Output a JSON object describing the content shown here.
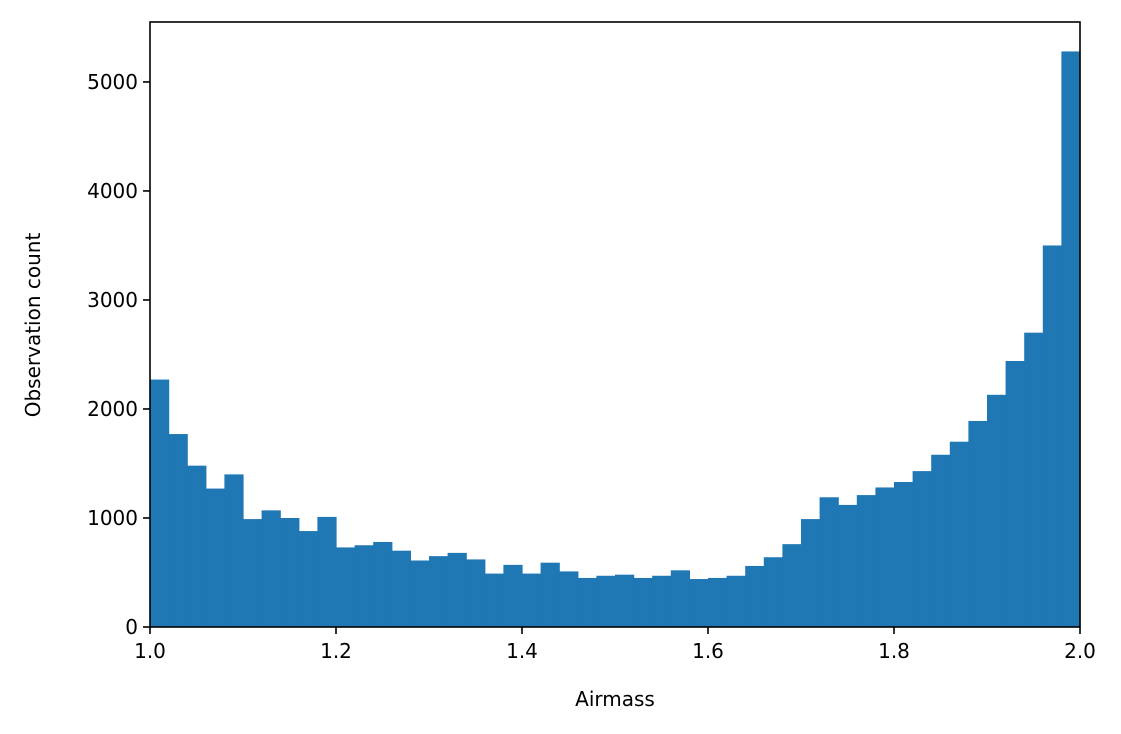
{
  "chart_data": {
    "type": "bar",
    "title": "",
    "xlabel": "Airmass",
    "ylabel": "Observation count",
    "xlim": [
      1.0,
      2.0
    ],
    "ylim": [
      0,
      5550
    ],
    "grid": false,
    "bar_color": "#1f77b4",
    "x_ticks": [
      1.0,
      1.2,
      1.4,
      1.6,
      1.8,
      2.0
    ],
    "x_tick_labels": [
      "1.0",
      "1.2",
      "1.4",
      "1.6",
      "1.8",
      "2.0"
    ],
    "y_ticks": [
      0,
      1000,
      2000,
      3000,
      4000,
      5000
    ],
    "y_tick_labels": [
      "0",
      "1000",
      "2000",
      "3000",
      "4000",
      "5000"
    ],
    "bin_edges": [
      1.0,
      1.02,
      1.04,
      1.06,
      1.08,
      1.1,
      1.12,
      1.14,
      1.16,
      1.18,
      1.2,
      1.22,
      1.24,
      1.26,
      1.28,
      1.3,
      1.32,
      1.34,
      1.36,
      1.38,
      1.4,
      1.42,
      1.44,
      1.46,
      1.48,
      1.5,
      1.52,
      1.54,
      1.56,
      1.58,
      1.6,
      1.62,
      1.64,
      1.66,
      1.68,
      1.7,
      1.72,
      1.74,
      1.76,
      1.78,
      1.8,
      1.82,
      1.84,
      1.86,
      1.88,
      1.9,
      1.92,
      1.94,
      1.96,
      1.98,
      2.0
    ],
    "values": [
      2270,
      1770,
      1480,
      1270,
      1400,
      990,
      1070,
      1000,
      880,
      1010,
      730,
      750,
      780,
      700,
      610,
      650,
      680,
      620,
      490,
      570,
      490,
      590,
      510,
      450,
      470,
      480,
      450,
      470,
      520,
      440,
      450,
      470,
      560,
      640,
      760,
      990,
      1190,
      1120,
      1210,
      1280,
      1330,
      1430,
      1580,
      1700,
      1890,
      2130,
      2440,
      2700,
      3500,
      5280
    ]
  }
}
